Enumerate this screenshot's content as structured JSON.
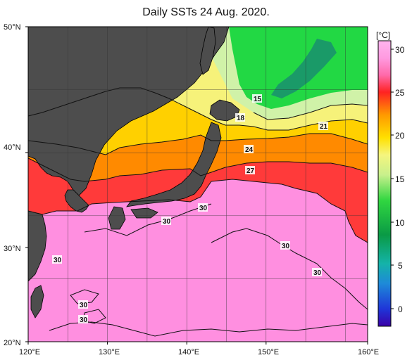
{
  "title": "Daily SSTs 24 Aug. 2020.",
  "map": {
    "lat_labels": [
      "50°N",
      "40°N",
      "30°N",
      "20°N"
    ],
    "lon_labels": [
      "120°E",
      "130°E",
      "140°E",
      "150°E",
      "160°E"
    ],
    "contour_labels": [
      "15",
      "18",
      "21",
      "24",
      "27",
      "30",
      "30",
      "30",
      "30",
      "30",
      "30",
      "30"
    ]
  },
  "colorbar": {
    "unit": "[°C]",
    "ticks": [
      "30",
      "25",
      "20",
      "15",
      "10",
      "5",
      "0"
    ],
    "range_min": -2,
    "range_max": 32
  },
  "colors": {
    "land": "#4d4d4d",
    "coast": "#000000",
    "grid": "#222222",
    "sst_30": "#ff8fe0",
    "sst_27": "#ff2a2a",
    "sst_24": "#ff8a00",
    "sst_21": "#ffd000",
    "sst_18": "#f7f57a",
    "sst_15": "#cdf5a8",
    "sst_12": "#22d844",
    "sst_10": "#1aa06a"
  }
}
